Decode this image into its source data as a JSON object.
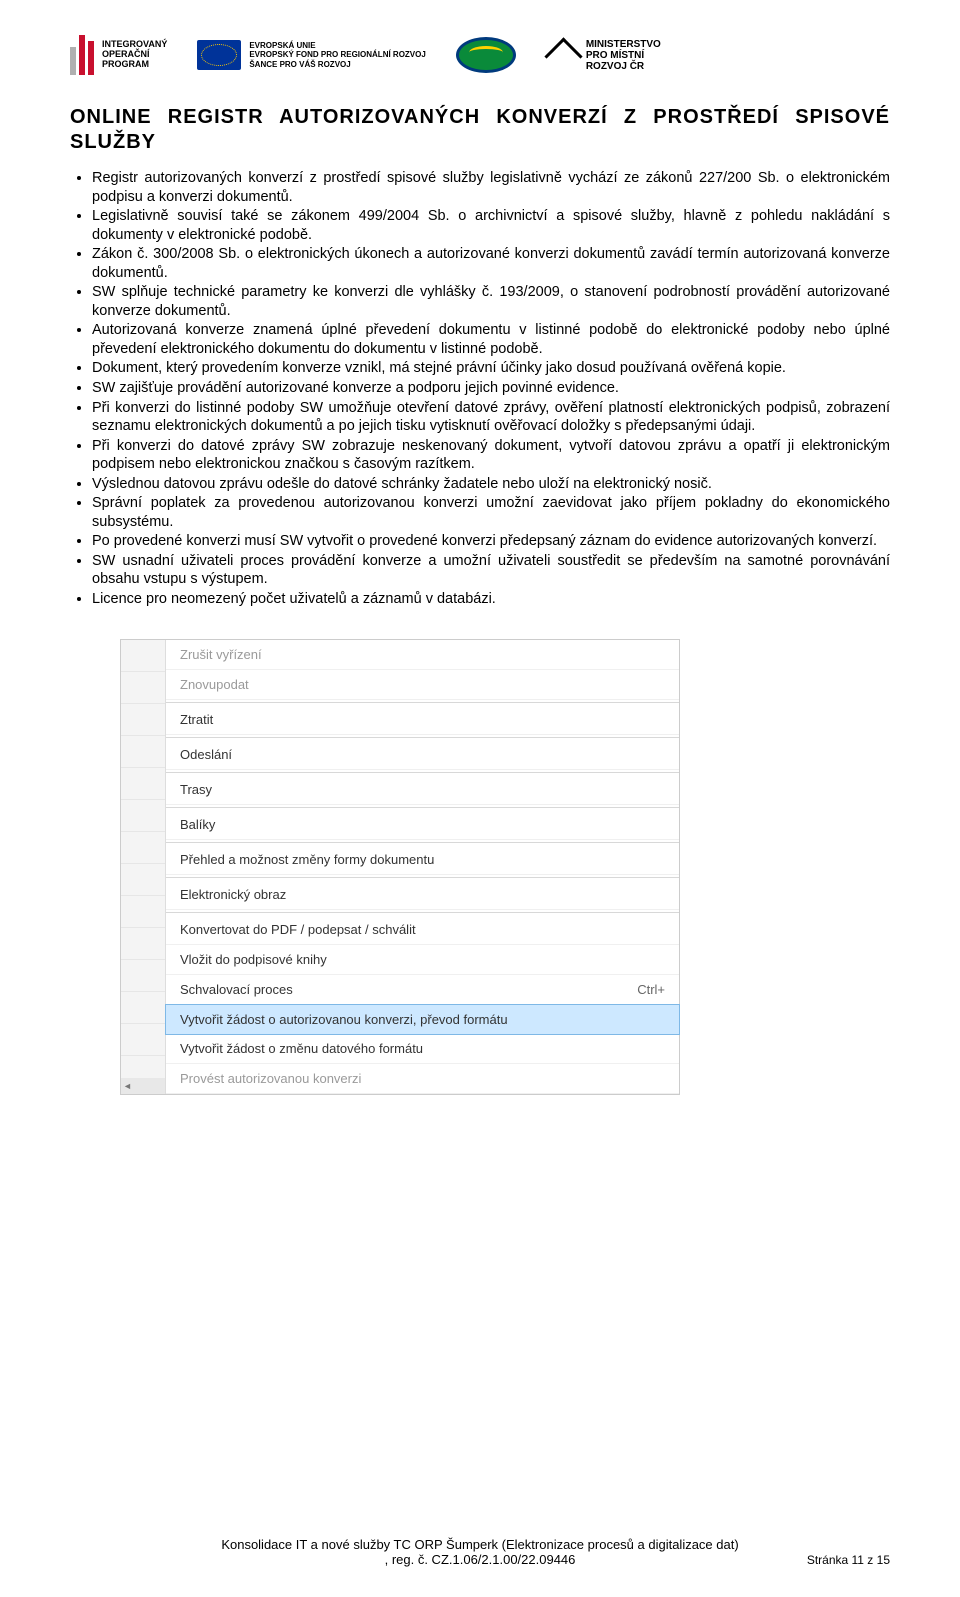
{
  "header": {
    "iop_line1": "INTEGROVANÝ",
    "iop_line2": "OPERAČNÍ",
    "iop_line3": "PROGRAM",
    "eu_line1": "EVROPSKÁ UNIE",
    "eu_line2": "EVROPSKÝ FOND PRO REGIONÁLNÍ ROZVOJ",
    "eu_line3": "ŠANCE PRO VÁŠ ROZVOJ",
    "mmr_line1": "MINISTERSTVO",
    "mmr_line2": "PRO MÍSTNÍ",
    "mmr_line3": "ROZVOJ ČR"
  },
  "title": "ONLINE REGISTR AUTORIZOVANÝCH KONVERZÍ Z PROSTŘEDÍ SPISOVÉ SLUŽBY",
  "bullets": [
    "Registr autorizovaných konverzí z prostředí spisové služby legislativně vychází ze zákonů 227/200 Sb. o elektronickém podpisu a konverzi dokumentů.",
    "Legislativně souvisí také se zákonem 499/2004 Sb. o archivnictví a spisové služby, hlavně z pohledu nakládání s dokumenty v elektronické podobě.",
    "Zákon č. 300/2008 Sb. o elektronických úkonech a autorizované konverzi dokumentů zavádí termín autorizovaná konverze dokumentů.",
    "SW splňuje technické parametry ke konverzi dle vyhlášky č. 193/2009, o stanovení podrobností provádění autorizované konverze dokumentů.",
    "Autorizovaná konverze znamená úplné převedení dokumentu v listinné podobě do elektronické podoby nebo úplné převedení elektronického dokumentu do dokumentu v listinné podobě.",
    "Dokument, který provedením konverze vznikl, má stejné právní účinky jako dosud používaná ověřená kopie.",
    "SW zajišťuje provádění autorizované konverze a podporu jejich povinné evidence.",
    "Při konverzi do listinné podoby SW umožňuje otevření datové zprávy, ověření platností elektronických podpisů, zobrazení seznamu elektronických dokumentů a po jejich tisku vytisknutí ověřovací doložky s předepsanými údaji.",
    "Při konverzi do datové zprávy SW zobrazuje neskenovaný dokument, vytvoří datovou zprávu a opatří ji elektronickým podpisem nebo elektronickou značkou s časovým razítkem.",
    "Výslednou datovou zprávu odešle do datové schránky žadatele nebo uloží na elektronický nosič.",
    "Správní poplatek za provedenou autorizovanou konverzi umožní zaevidovat jako příjem pokladny do ekonomického subsystému.",
    "Po provedené konverzi musí SW vytvořit o provedené konverzi předepsaný záznam do evidence autorizovaných konverzí.",
    "SW usnadní uživateli proces provádění konverze a umožní uživateli soustředit se především na samotné porovnávání obsahu vstupu s výstupem.",
    "Licence pro neomezený počet uživatelů a záznamů v databázi."
  ],
  "menu": {
    "items": [
      {
        "label": "Zrušit vyřízení",
        "disabled": true,
        "sep": false
      },
      {
        "label": "Znovupodat",
        "disabled": true,
        "sep": true
      },
      {
        "label": "Ztratit",
        "disabled": false,
        "sep": true
      },
      {
        "label": "Odeslání",
        "disabled": false,
        "sep": true
      },
      {
        "label": "Trasy",
        "disabled": false,
        "sep": true
      },
      {
        "label": "Balíky",
        "disabled": false,
        "sep": true
      },
      {
        "label": "Přehled a možnost změny formy dokumentu",
        "disabled": false,
        "sep": true
      },
      {
        "label": "Elektronický obraz",
        "disabled": false,
        "sep": true
      },
      {
        "label": "Konvertovat do PDF / podepsat / schválit",
        "disabled": false,
        "sep": false
      },
      {
        "label": "Vložit do podpisové knihy",
        "disabled": false,
        "sep": false
      },
      {
        "label": "Schvalovací proces",
        "disabled": false,
        "sep": false,
        "shortcut": "Ctrl+"
      },
      {
        "label": "Vytvořit žádost o autorizovanou konverzi, převod formátu",
        "disabled": false,
        "sep": false,
        "selected": true
      },
      {
        "label": "Vytvořit žádost o změnu datového formátu",
        "disabled": false,
        "sep": false
      },
      {
        "label": "Provést autorizovanou konverzi",
        "disabled": true,
        "sep": false
      }
    ],
    "scroll_left": "◄",
    "scroll_right": "►"
  },
  "footer": {
    "line1": "Konsolidace IT a nové služby TC ORP Šumperk (Elektronizace procesů a digitalizace dat)",
    "line2": ", reg. č. CZ.1.06/2.1.00/22.09446",
    "page": "Stránka 11 z 15"
  },
  "colors": {
    "iop_red": "#c8102e",
    "iop_grey": "#b0b0b0",
    "eu_blue": "#003399",
    "eu_gold": "#ffcc00",
    "oval_green": "#0a8a3a",
    "oval_border": "#003a7d",
    "menu_highlight": "#cde8ff",
    "menu_highlight_border": "#7eb8e6",
    "text": "#000000",
    "bg": "#ffffff"
  }
}
